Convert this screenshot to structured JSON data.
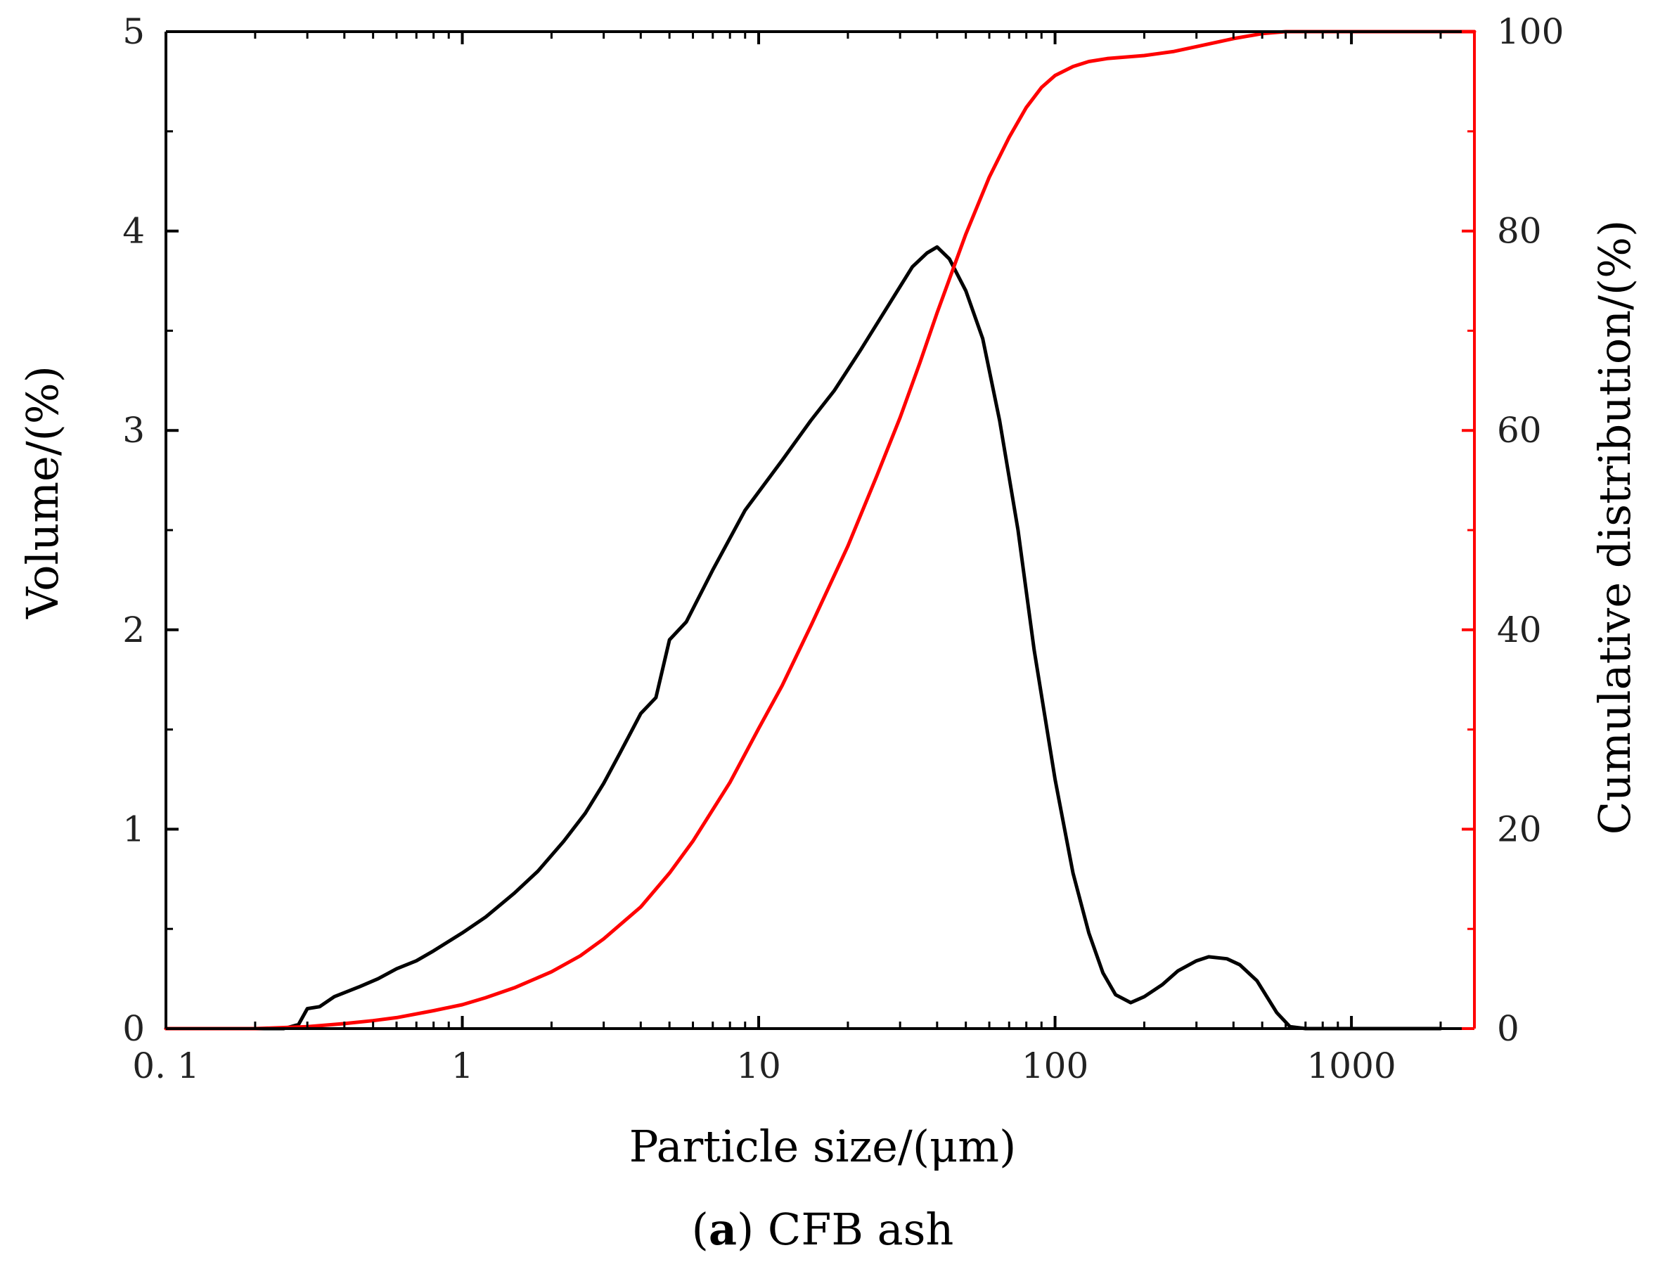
{
  "chart_data": {
    "type": "line",
    "caption": {
      "tag": "(",
      "letter": "a",
      "close": ")",
      "text": " CFB ash"
    },
    "xlabel": "Particle size/(μm)",
    "ylabel_left": "Volume/(%)",
    "ylabel_right": "Cumulative distribution/(%)",
    "x_scale": "log",
    "xlim": [
      0.1,
      2600
    ],
    "ylim_left": [
      0,
      5
    ],
    "ylim_right": [
      0,
      100
    ],
    "x_ticks": [
      {
        "value": 0.1,
        "label": "0. 1"
      },
      {
        "value": 1,
        "label": "1"
      },
      {
        "value": 10,
        "label": "10"
      },
      {
        "value": 100,
        "label": "100"
      },
      {
        "value": 1000,
        "label": "1000"
      }
    ],
    "y_ticks_left": [
      {
        "value": 0,
        "label": "0"
      },
      {
        "value": 1,
        "label": "1"
      },
      {
        "value": 2,
        "label": "2"
      },
      {
        "value": 3,
        "label": "3"
      },
      {
        "value": 4,
        "label": "4"
      },
      {
        "value": 5,
        "label": "5"
      }
    ],
    "y_ticks_right": [
      {
        "value": 0,
        "label": "0"
      },
      {
        "value": 20,
        "label": "20"
      },
      {
        "value": 40,
        "label": "40"
      },
      {
        "value": 60,
        "label": "60"
      },
      {
        "value": 80,
        "label": "80"
      },
      {
        "value": 100,
        "label": "100"
      }
    ],
    "series": [
      {
        "name": "Volume",
        "axis": "left",
        "color": "#000000",
        "points": [
          [
            0.1,
            0
          ],
          [
            0.2,
            0
          ],
          [
            0.25,
            0
          ],
          [
            0.28,
            0.02
          ],
          [
            0.3,
            0.1
          ],
          [
            0.33,
            0.11
          ],
          [
            0.37,
            0.16
          ],
          [
            0.45,
            0.21
          ],
          [
            0.52,
            0.25
          ],
          [
            0.6,
            0.3
          ],
          [
            0.7,
            0.34
          ],
          [
            0.8,
            0.39
          ],
          [
            1,
            0.48
          ],
          [
            1.2,
            0.56
          ],
          [
            1.5,
            0.68
          ],
          [
            1.8,
            0.79
          ],
          [
            2.2,
            0.94
          ],
          [
            2.6,
            1.08
          ],
          [
            3,
            1.23
          ],
          [
            3.4,
            1.38
          ],
          [
            4,
            1.58
          ],
          [
            4.5,
            1.66
          ],
          [
            5,
            1.95
          ],
          [
            5.7,
            2.04
          ],
          [
            7,
            2.3
          ],
          [
            9,
            2.6
          ],
          [
            12,
            2.85
          ],
          [
            15,
            3.05
          ],
          [
            18,
            3.2
          ],
          [
            22,
            3.4
          ],
          [
            28,
            3.65
          ],
          [
            33,
            3.82
          ],
          [
            37,
            3.89
          ],
          [
            40,
            3.92
          ],
          [
            44,
            3.86
          ],
          [
            50,
            3.7
          ],
          [
            57,
            3.46
          ],
          [
            65,
            3.05
          ],
          [
            75,
            2.5
          ],
          [
            85,
            1.9
          ],
          [
            100,
            1.25
          ],
          [
            115,
            0.78
          ],
          [
            130,
            0.48
          ],
          [
            145,
            0.28
          ],
          [
            160,
            0.17
          ],
          [
            180,
            0.13
          ],
          [
            200,
            0.16
          ],
          [
            230,
            0.22
          ],
          [
            260,
            0.29
          ],
          [
            300,
            0.34
          ],
          [
            330,
            0.36
          ],
          [
            380,
            0.35
          ],
          [
            420,
            0.32
          ],
          [
            480,
            0.24
          ],
          [
            560,
            0.08
          ],
          [
            620,
            0.01
          ],
          [
            700,
            0
          ],
          [
            2000,
            0
          ]
        ]
      },
      {
        "name": "Cumulative distribution",
        "axis": "right",
        "color": "#ff0000",
        "points": [
          [
            0.1,
            0
          ],
          [
            0.2,
            0
          ],
          [
            0.3,
            0.2
          ],
          [
            0.4,
            0.5
          ],
          [
            0.5,
            0.8
          ],
          [
            0.6,
            1.1
          ],
          [
            0.8,
            1.8
          ],
          [
            1,
            2.4
          ],
          [
            1.2,
            3.1
          ],
          [
            1.5,
            4.1
          ],
          [
            2,
            5.7
          ],
          [
            2.5,
            7.3
          ],
          [
            3,
            9
          ],
          [
            4,
            12.2
          ],
          [
            5,
            15.6
          ],
          [
            6,
            18.8
          ],
          [
            8,
            24.7
          ],
          [
            10,
            30.1
          ],
          [
            12,
            34.4
          ],
          [
            15,
            40.4
          ],
          [
            20,
            48.4
          ],
          [
            25,
            55.4
          ],
          [
            30,
            61.3
          ],
          [
            35,
            66.8
          ],
          [
            40,
            71.8
          ],
          [
            50,
            79.7
          ],
          [
            60,
            85.4
          ],
          [
            70,
            89.4
          ],
          [
            80,
            92.4
          ],
          [
            90,
            94.4
          ],
          [
            100,
            95.6
          ],
          [
            115,
            96.5
          ],
          [
            130,
            97
          ],
          [
            150,
            97.3
          ],
          [
            200,
            97.6
          ],
          [
            250,
            98
          ],
          [
            300,
            98.5
          ],
          [
            400,
            99.3
          ],
          [
            500,
            99.8
          ],
          [
            600,
            100
          ],
          [
            1000,
            100
          ],
          [
            2600,
            100
          ]
        ]
      }
    ]
  }
}
